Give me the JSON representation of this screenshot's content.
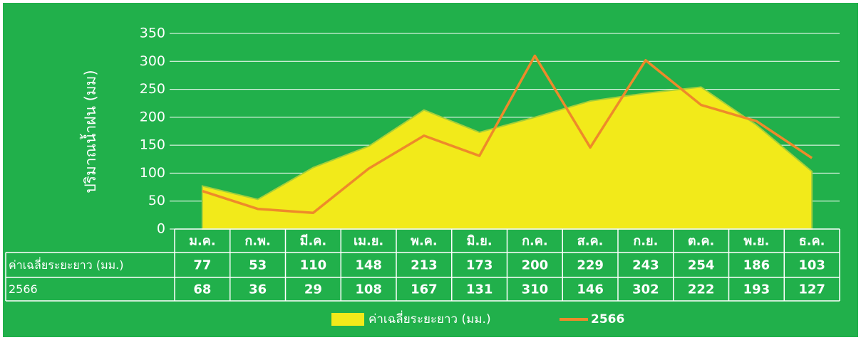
{
  "chart_data": {
    "type": "line",
    "y_axis_label": "ปริมาณน้ำฝน (มม)",
    "categories": [
      "ม.ค.",
      "ก.พ.",
      "มี.ค.",
      "เม.ย.",
      "พ.ค.",
      "มิ.ย.",
      "ก.ค.",
      "ส.ค.",
      "ก.ย.",
      "ต.ค.",
      "พ.ย.",
      "ธ.ค."
    ],
    "series": [
      {
        "name": "ค่าเฉลี่ยระยะยาว (มม.)",
        "type": "area",
        "color": "#f2ea1a",
        "values": [
          77,
          53,
          110,
          148,
          213,
          173,
          200,
          229,
          243,
          254,
          186,
          103
        ]
      },
      {
        "name": "2566",
        "type": "line",
        "color": "#ee8a2a",
        "values": [
          68,
          36,
          29,
          108,
          167,
          131,
          310,
          146,
          302,
          222,
          193,
          127
        ]
      }
    ],
    "ylim": [
      0,
      350
    ],
    "yticks": [
      0,
      50,
      100,
      150,
      200,
      250,
      300,
      350
    ],
    "grid": true,
    "legend": "bottom"
  }
}
